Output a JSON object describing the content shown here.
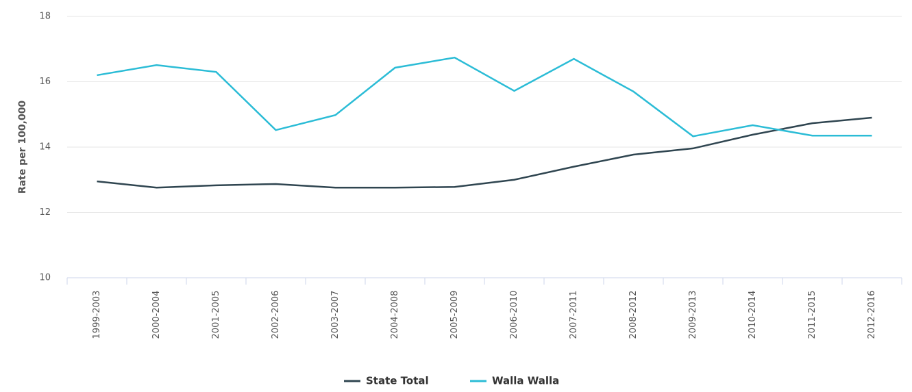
{
  "chart_data": {
    "type": "line",
    "ylabel": "Rate per 100,000",
    "categories": [
      "1999-2003",
      "2000-2004",
      "2001-2005",
      "2002-2006",
      "2003-2007",
      "2004-2008",
      "2005-2009",
      "2006-2010",
      "2007-2011",
      "2008-2012",
      "2009-2013",
      "2010-2014",
      "2011-2015",
      "2012-2016"
    ],
    "series": [
      {
        "name": "State Total",
        "color": "#2f4550",
        "values": [
          12.95,
          12.76,
          12.83,
          12.87,
          12.76,
          12.76,
          12.78,
          13.0,
          13.4,
          13.77,
          13.96,
          14.38,
          14.73,
          14.9
        ]
      },
      {
        "name": "Walla Walla",
        "color": "#2bbcd6",
        "values": [
          16.2,
          16.51,
          16.3,
          14.52,
          14.98,
          16.43,
          16.74,
          15.72,
          16.7,
          15.7,
          14.33,
          14.67,
          14.35,
          14.35
        ]
      }
    ],
    "ylim": [
      10,
      18
    ],
    "yticks": [
      10,
      12,
      14,
      16,
      18
    ],
    "grid": true,
    "legend": "bottom"
  }
}
